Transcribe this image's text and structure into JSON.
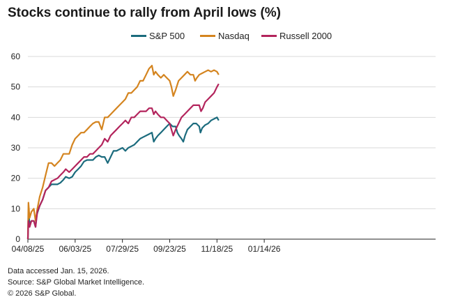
{
  "title": "Stocks continue to rally from April lows (%)",
  "chart_data": {
    "type": "line",
    "title": "Stocks continue to rally from April lows (%)",
    "xlabel": "",
    "ylabel": "",
    "ylim": [
      0,
      60
    ],
    "yticks": [
      0,
      10,
      20,
      30,
      40,
      50,
      60
    ],
    "xlim": [
      0,
      69
    ],
    "xticks": [
      {
        "x": 0,
        "label": "04/08/25"
      },
      {
        "x": 8,
        "label": "06/03/25"
      },
      {
        "x": 16,
        "label": "07/29/25"
      },
      {
        "x": 24,
        "label": "09/23/25"
      },
      {
        "x": 32,
        "label": "11/18/25"
      },
      {
        "x": 40,
        "label": "01/14/26"
      }
    ],
    "x_unit": "weeks since 04/08/25",
    "grid": true,
    "legend_position": "top-center",
    "series": [
      {
        "name": "S&P 500",
        "color": "#1b6b7d",
        "points": [
          [
            0,
            0
          ],
          [
            0.1,
            9
          ],
          [
            0.3,
            5
          ],
          [
            0.6,
            6
          ],
          [
            1,
            6
          ],
          [
            1.3,
            4
          ],
          [
            1.5,
            8
          ],
          [
            2,
            11
          ],
          [
            2.5,
            13
          ],
          [
            3,
            16
          ],
          [
            3.5,
            17
          ],
          [
            4,
            18
          ],
          [
            5,
            18
          ],
          [
            5.5,
            18.5
          ],
          [
            6,
            19.5
          ],
          [
            6.4,
            20.5
          ],
          [
            7,
            20
          ],
          [
            7.5,
            20.5
          ],
          [
            8,
            22
          ],
          [
            8.5,
            23
          ],
          [
            9,
            24
          ],
          [
            9.5,
            25.5
          ],
          [
            10,
            26
          ],
          [
            10.5,
            26
          ],
          [
            11,
            26
          ],
          [
            11.5,
            27
          ],
          [
            12,
            27.5
          ],
          [
            12.5,
            27
          ],
          [
            13,
            27
          ],
          [
            13.5,
            25
          ],
          [
            14,
            27
          ],
          [
            14.5,
            29
          ],
          [
            15,
            29
          ],
          [
            15.5,
            29.5
          ],
          [
            16,
            30
          ],
          [
            16.5,
            29
          ],
          [
            17,
            30
          ],
          [
            17.5,
            30.5
          ],
          [
            18,
            31
          ],
          [
            18.5,
            32
          ],
          [
            19,
            33
          ],
          [
            19.5,
            33.5
          ],
          [
            20,
            34
          ],
          [
            20.5,
            34.5
          ],
          [
            21,
            35
          ],
          [
            21.3,
            32
          ],
          [
            21.6,
            33
          ],
          [
            22,
            34
          ],
          [
            22.5,
            35
          ],
          [
            23,
            36
          ],
          [
            23.5,
            37
          ],
          [
            24,
            38
          ],
          [
            24.5,
            37
          ],
          [
            25,
            37
          ],
          [
            25.3,
            35
          ],
          [
            25.6,
            34
          ],
          [
            26,
            33
          ],
          [
            26.3,
            32
          ],
          [
            26.6,
            34
          ],
          [
            27,
            36
          ],
          [
            27.5,
            37
          ],
          [
            28,
            38
          ],
          [
            28.5,
            38
          ],
          [
            29,
            37
          ],
          [
            29.2,
            35
          ],
          [
            29.5,
            36.5
          ],
          [
            30,
            37.5
          ],
          [
            30.5,
            38
          ],
          [
            31,
            39
          ],
          [
            31.5,
            39.5
          ],
          [
            32,
            40
          ],
          [
            32.3,
            39
          ]
        ]
      },
      {
        "name": "Nasdaq",
        "color": "#d4841f",
        "points": [
          [
            0,
            0
          ],
          [
            0.1,
            12
          ],
          [
            0.3,
            7
          ],
          [
            0.6,
            9
          ],
          [
            1,
            10
          ],
          [
            1.3,
            6
          ],
          [
            1.6,
            10
          ],
          [
            2,
            14
          ],
          [
            2.5,
            17
          ],
          [
            3,
            21
          ],
          [
            3.5,
            25
          ],
          [
            4,
            25
          ],
          [
            4.5,
            24
          ],
          [
            5,
            25
          ],
          [
            5.5,
            26
          ],
          [
            6,
            28
          ],
          [
            6.5,
            28
          ],
          [
            7,
            28
          ],
          [
            7.5,
            31
          ],
          [
            8,
            33
          ],
          [
            8.5,
            34
          ],
          [
            9,
            35
          ],
          [
            9.5,
            35
          ],
          [
            10,
            36
          ],
          [
            10.5,
            37
          ],
          [
            11,
            38
          ],
          [
            11.5,
            38.5
          ],
          [
            12,
            38.5
          ],
          [
            12.5,
            36
          ],
          [
            13,
            40
          ],
          [
            13.5,
            40
          ],
          [
            14,
            41
          ],
          [
            14.5,
            42
          ],
          [
            15,
            43
          ],
          [
            15.5,
            44
          ],
          [
            16,
            45
          ],
          [
            16.5,
            46
          ],
          [
            17,
            48
          ],
          [
            17.5,
            48
          ],
          [
            18,
            49
          ],
          [
            18.5,
            50
          ],
          [
            19,
            52
          ],
          [
            19.5,
            52
          ],
          [
            20,
            54
          ],
          [
            20.5,
            56
          ],
          [
            21,
            57
          ],
          [
            21.3,
            54
          ],
          [
            21.6,
            55
          ],
          [
            22,
            54
          ],
          [
            22.5,
            53
          ],
          [
            23,
            54
          ],
          [
            23.5,
            53
          ],
          [
            24,
            52
          ],
          [
            24.3,
            50
          ],
          [
            24.6,
            47
          ],
          [
            25,
            49
          ],
          [
            25.5,
            52
          ],
          [
            26,
            53
          ],
          [
            26.5,
            54
          ],
          [
            27,
            55
          ],
          [
            27.5,
            54
          ],
          [
            28,
            54
          ],
          [
            28.3,
            52
          ],
          [
            28.6,
            53
          ],
          [
            29,
            54
          ],
          [
            29.5,
            54.5
          ],
          [
            30,
            55
          ],
          [
            30.5,
            55.5
          ],
          [
            31,
            55
          ],
          [
            31.5,
            55.5
          ],
          [
            32,
            55
          ],
          [
            32.3,
            54
          ]
        ]
      },
      {
        "name": "Russell 2000",
        "color": "#b3245c",
        "points": [
          [
            0,
            0
          ],
          [
            0.1,
            6
          ],
          [
            0.3,
            4
          ],
          [
            0.6,
            6
          ],
          [
            1,
            6
          ],
          [
            1.3,
            4
          ],
          [
            1.6,
            9
          ],
          [
            2,
            11
          ],
          [
            2.5,
            13
          ],
          [
            3,
            16
          ],
          [
            3.5,
            17
          ],
          [
            4,
            19
          ],
          [
            5,
            20
          ],
          [
            5.5,
            21
          ],
          [
            6,
            22
          ],
          [
            6.4,
            23
          ],
          [
            7,
            22
          ],
          [
            7.5,
            23
          ],
          [
            8,
            24
          ],
          [
            8.5,
            25
          ],
          [
            9,
            26
          ],
          [
            9.5,
            27
          ],
          [
            10,
            27
          ],
          [
            10.5,
            28
          ],
          [
            11,
            28
          ],
          [
            11.5,
            29
          ],
          [
            12,
            30
          ],
          [
            12.5,
            31
          ],
          [
            13,
            33
          ],
          [
            13.5,
            32
          ],
          [
            14,
            34
          ],
          [
            14.5,
            35
          ],
          [
            15,
            36
          ],
          [
            15.5,
            37
          ],
          [
            16,
            38
          ],
          [
            16.5,
            39
          ],
          [
            17,
            38
          ],
          [
            17.5,
            40
          ],
          [
            18,
            40
          ],
          [
            18.5,
            41
          ],
          [
            19,
            42
          ],
          [
            19.5,
            42
          ],
          [
            20,
            42
          ],
          [
            20.5,
            43
          ],
          [
            21,
            43
          ],
          [
            21.3,
            41
          ],
          [
            21.6,
            42
          ],
          [
            22,
            41
          ],
          [
            22.5,
            40
          ],
          [
            23,
            40
          ],
          [
            23.5,
            39
          ],
          [
            24,
            38
          ],
          [
            24.3,
            36
          ],
          [
            24.6,
            34
          ],
          [
            25,
            36
          ],
          [
            25.5,
            38
          ],
          [
            26,
            40
          ],
          [
            26.5,
            41
          ],
          [
            27,
            42
          ],
          [
            27.5,
            43
          ],
          [
            28,
            44
          ],
          [
            28.5,
            44
          ],
          [
            29,
            44
          ],
          [
            29.3,
            42
          ],
          [
            29.6,
            43
          ],
          [
            30,
            45
          ],
          [
            30.5,
            46
          ],
          [
            31,
            47
          ],
          [
            31.5,
            48
          ],
          [
            32,
            50
          ],
          [
            32.3,
            51
          ]
        ]
      }
    ]
  },
  "legend": [
    {
      "label": "S&P 500",
      "color": "#1b6b7d"
    },
    {
      "label": "Nasdaq",
      "color": "#d4841f"
    },
    {
      "label": "Russell 2000",
      "color": "#b3245c"
    }
  ],
  "footnotes": [
    "Data accessed Jan. 15, 2026.",
    "Source: S&P Global Market Intelligence.",
    "© 2026 S&P Global."
  ]
}
